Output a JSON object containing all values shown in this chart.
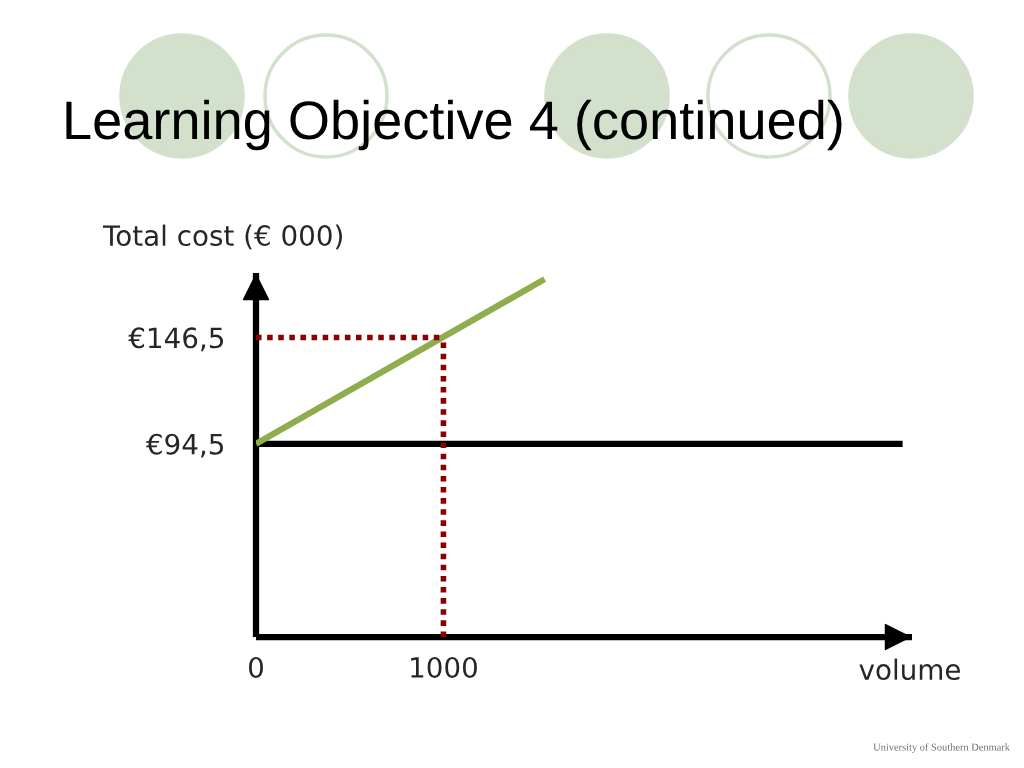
{
  "chart_data": {
    "type": "line",
    "title": "Learning Objective 4 (continued)",
    "xlabel": "volume",
    "ylabel": "Total cost (€ 000)",
    "annotations": [
      "University of Southern Denmark"
    ],
    "xlim": [
      0,
      3500
    ],
    "xticks": [
      0,
      1000
    ],
    "ylim": [
      0,
      178
    ],
    "yticks": [
      {
        "value": 94.5,
        "label": "€94,5"
      },
      {
        "value": 146.5,
        "label": "€146,5"
      }
    ],
    "grid": false,
    "marker": "none",
    "series": [
      {
        "color": "#000000",
        "x": [
          0,
          3450
        ],
        "values": [
          94.5,
          94.5
        ]
      },
      {
        "color": "#8fad4c",
        "x": [
          0,
          1540
        ],
        "values": [
          94.5,
          175
        ]
      },
      {
        "color": "#8b0000",
        "line_style": "dotted",
        "x": [
          0,
          1000
        ],
        "values": [
          146.5,
          146.5
        ]
      },
      {
        "color": "#8b0000",
        "line_style": "dotted",
        "x": [
          1000,
          1000
        ],
        "values": [
          0,
          146.5
        ]
      }
    ]
  }
}
